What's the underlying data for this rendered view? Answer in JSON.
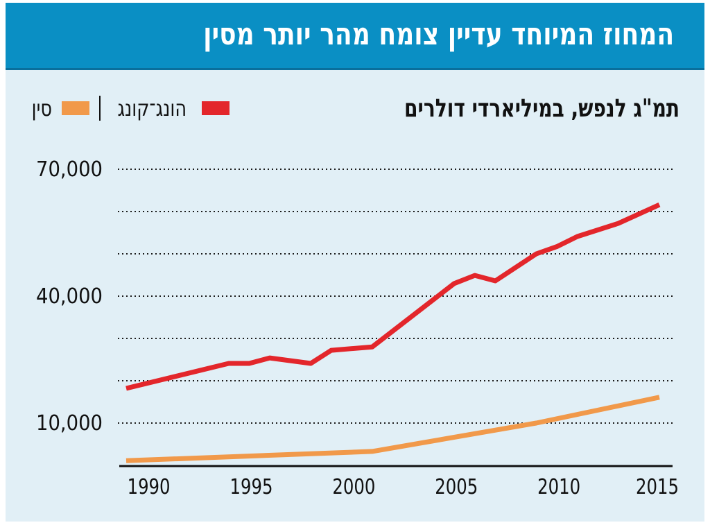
{
  "header": {
    "title": "המחוז המיוחד עדיין צומח מהר יותר מסין"
  },
  "colors": {
    "header_bg": "#0a8fc4",
    "panel_bg": "#e1eff6",
    "hong_kong": "#e3262b",
    "china": "#f1994a"
  },
  "chart_data": {
    "type": "line",
    "title": "המחוז המיוחד עדיין צומח מהר יותר מסין",
    "subtitle": "תמ\"ג לנפש, במיליארדי דולרים",
    "xlabel": "",
    "ylabel": "",
    "xlim": [
      1989,
      2015
    ],
    "ylim": [
      0,
      70000
    ],
    "xticks": [
      1990,
      1995,
      2000,
      2005,
      2010,
      2015
    ],
    "xtick_labels": [
      "1990",
      "1995",
      "2000",
      "2005",
      "2010",
      "2015"
    ],
    "yticks": [
      10000,
      20000,
      30000,
      40000,
      50000,
      60000,
      70000
    ],
    "ytick_labels": [
      "10,000",
      "",
      "",
      "40,000",
      "",
      "",
      "70,000"
    ],
    "grid": "horizontal-dotted",
    "legend": {
      "placement": "top-left",
      "entries": [
        "הונג־קונג",
        "סין"
      ]
    },
    "series": [
      {
        "name": "הונג־קונג",
        "color": "#e3262b",
        "points": [
          [
            1989,
            18200
          ],
          [
            1994,
            24100
          ],
          [
            1995,
            24100
          ],
          [
            1996,
            25400
          ],
          [
            1998,
            24100
          ],
          [
            1999,
            27200
          ],
          [
            2001,
            28000
          ],
          [
            2005,
            43000
          ],
          [
            2006,
            44900
          ],
          [
            2007,
            43600
          ],
          [
            2009,
            50000
          ],
          [
            2010,
            51700
          ],
          [
            2011,
            54100
          ],
          [
            2013,
            57200
          ],
          [
            2015,
            61600
          ]
        ]
      },
      {
        "name": "סין",
        "color": "#f1994a",
        "points": [
          [
            1989,
            1100
          ],
          [
            2001,
            3300
          ],
          [
            2009,
            10000
          ],
          [
            2015,
            16100
          ]
        ]
      }
    ]
  }
}
